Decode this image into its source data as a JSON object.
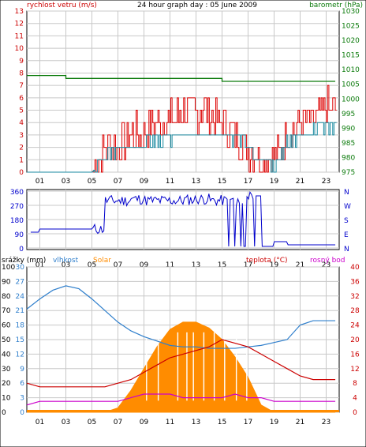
{
  "header": {
    "title": "24 hour graph day : 05 June 2009",
    "left_label": "rychlost vetru (m/s)",
    "right_label": "barometr (hPa)"
  },
  "colors": {
    "wind_speed": "#dd0000",
    "wind_avg": "#1a8aa0",
    "barometer": "#0a7a0a",
    "wind_dir": "#0000cc",
    "humidity": "#2f7fcc",
    "solar": "#ff8c00",
    "temperature": "#cc0000",
    "dew_point": "#cc00cc",
    "rain": "#1f5fd0",
    "grid": "#c8c8c8"
  },
  "x_ticks": [
    "01",
    "03",
    "05",
    "07",
    "09",
    "11",
    "13",
    "15",
    "17",
    "19",
    "21",
    "23"
  ],
  "chart_data": [
    {
      "type": "line",
      "name": "wind-barometer",
      "x_hours": [
        0,
        1,
        2,
        3,
        4,
        5,
        6,
        7,
        8,
        9,
        10,
        11,
        12,
        13,
        14,
        15,
        16,
        17,
        18,
        19,
        20,
        21,
        22,
        23,
        23.7
      ],
      "y_left_ticks": [
        "0",
        "1",
        "2",
        "3",
        "4",
        "5",
        "6",
        "7",
        "8",
        "9",
        "10",
        "11",
        "12",
        "13"
      ],
      "y_left_range": [
        0,
        13
      ],
      "y_right_ticks": [
        "975",
        "980",
        "985",
        "990",
        "995",
        "1000",
        "1005",
        "1010",
        "1015",
        "1020",
        "1025",
        "1030"
      ],
      "y_right_range": [
        975,
        1030
      ],
      "series": [
        {
          "name": "rychlost vetru",
          "values": [
            0,
            0,
            0,
            0,
            0,
            0,
            2,
            2,
            3,
            3,
            4,
            4,
            5,
            5,
            5,
            4,
            3,
            2,
            1,
            1,
            3,
            4,
            4,
            5,
            5
          ]
        },
        {
          "name": "wind_avg",
          "values": [
            0,
            0,
            0,
            0,
            0,
            0,
            1.2,
            2,
            2,
            2.4,
            2.6,
            2.8,
            3,
            3,
            3,
            3,
            2.8,
            2,
            1,
            0.8,
            2.4,
            3,
            3.2,
            3.6,
            3.8
          ]
        },
        {
          "name": "barometr",
          "values": [
            1008,
            1008,
            1008,
            1007,
            1007,
            1007,
            1007,
            1007,
            1007,
            1007,
            1007,
            1007,
            1007,
            1007,
            1007,
            1006,
            1006,
            1006,
            1006,
            1006,
            1006,
            1006,
            1006,
            1006,
            1006
          ]
        }
      ]
    },
    {
      "type": "scatter",
      "name": "wind-direction",
      "y_ticks_left": [
        "360",
        "270",
        "180",
        "90",
        "0"
      ],
      "y_ticks_right": [
        "N",
        "W",
        "S",
        "E",
        "N"
      ],
      "y_range": [
        0,
        360
      ],
      "x_hours": [
        0.3,
        1,
        2,
        3,
        4,
        5,
        6,
        7,
        8,
        9,
        10,
        11,
        12,
        13,
        14,
        15,
        16,
        17,
        17.5,
        18,
        19,
        20,
        21,
        22,
        23,
        23.7
      ],
      "values": [
        100,
        120,
        120,
        120,
        120,
        120,
        300,
        300,
        310,
        300,
        300,
        300,
        305,
        310,
        300,
        300,
        300,
        320,
        330,
        10,
        40,
        20,
        20,
        20,
        20,
        10
      ]
    },
    {
      "type": "area",
      "name": "rain-humidity-solar-temp",
      "labels": {
        "rain": "srážky (mm)",
        "humidity": "vlhkost",
        "solar": "Solar",
        "temperature": "teplota (°C)",
        "dew_point": "rosný bod"
      },
      "y_left_rain_ticks": [
        "0",
        "10",
        "20",
        "30",
        "40",
        "50",
        "60",
        "70",
        "80",
        "90",
        "100"
      ],
      "y_left_hum_ticks": [
        "0",
        "3",
        "6",
        "9",
        "12",
        "15",
        "18",
        "21",
        "24",
        "27",
        "30"
      ],
      "y_right_ticks": [
        "0",
        "4",
        "8",
        "12",
        "16",
        "20",
        "24",
        "28",
        "32",
        "36",
        "40"
      ],
      "x_hours": [
        0,
        1,
        2,
        3,
        4,
        5,
        6,
        7,
        8,
        9,
        10,
        11,
        12,
        13,
        14,
        15,
        16,
        17,
        18,
        19,
        20,
        21,
        22,
        23,
        23.7
      ],
      "series": [
        {
          "name": "vlhkost",
          "values": [
            71,
            78,
            84,
            87,
            85,
            78,
            70,
            62,
            56,
            52,
            49,
            46,
            45,
            45,
            44,
            44,
            44,
            45,
            46,
            48,
            50,
            60,
            63,
            63,
            63
          ]
        },
        {
          "name": "Solar",
          "values": [
            0,
            0,
            0,
            0,
            0,
            0,
            0,
            3,
            15,
            30,
            45,
            57,
            62,
            62,
            58,
            50,
            38,
            24,
            5,
            0,
            0,
            0,
            0,
            0,
            0
          ]
        },
        {
          "name": "teplota",
          "values": [
            8,
            7,
            7,
            7,
            7,
            7,
            7,
            8,
            9,
            11,
            13,
            15,
            16,
            17,
            18,
            20,
            19,
            18,
            16,
            14,
            12,
            10,
            9,
            9,
            9
          ]
        },
        {
          "name": "rosný bod",
          "values": [
            2,
            3,
            3,
            3,
            3,
            3,
            3,
            3,
            4,
            5,
            5,
            5,
            4,
            4,
            4,
            4,
            5,
            4,
            4,
            3,
            3,
            3,
            3,
            3,
            3
          ]
        }
      ]
    }
  ]
}
